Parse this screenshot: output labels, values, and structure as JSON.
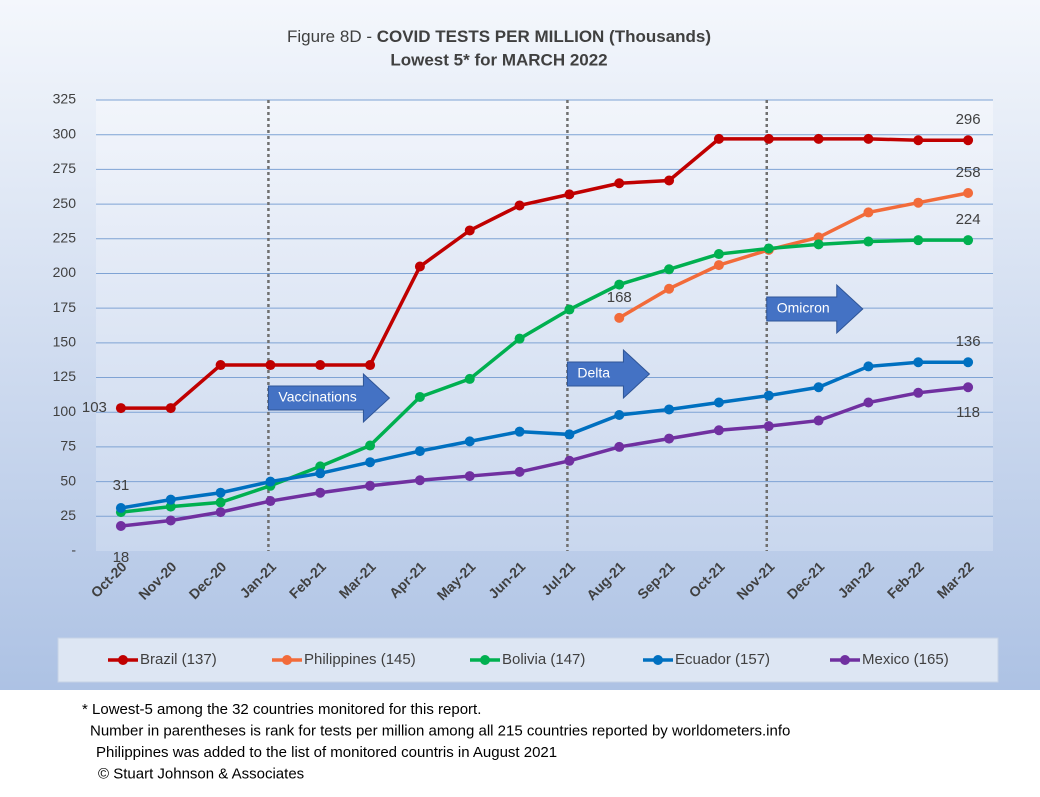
{
  "chart_data": {
    "type": "line",
    "title": {
      "label": "Figure 8D - ",
      "text": "COVID TESTS PER MILLION (Thousands)"
    },
    "subtitle": "Lowest 5* for MARCH 2022",
    "categories": [
      "Oct-20",
      "Nov-20",
      "Dec-20",
      "Jan-21",
      "Feb-21",
      "Mar-21",
      "Apr-21",
      "May-21",
      "Jun-21",
      "Jul-21",
      "Aug-21",
      "Sep-21",
      "Oct-21",
      "Nov-21",
      "Dec-21",
      "Jan-22",
      "Feb-22",
      "Mar-22"
    ],
    "series": [
      {
        "name": "Brazil (137)",
        "color": "#c00000",
        "values": [
          103,
          103,
          134,
          134,
          134,
          134,
          205,
          231,
          249,
          257,
          265,
          267,
          297,
          297,
          297,
          297,
          296,
          296
        ],
        "value_labels": [
          "103",
          null,
          null,
          null,
          null,
          null,
          null,
          null,
          null,
          null,
          null,
          null,
          null,
          null,
          null,
          null,
          null,
          "296"
        ]
      },
      {
        "name": "Philippines (145)",
        "color": "#f26b3a",
        "values": [
          null,
          null,
          null,
          null,
          null,
          null,
          null,
          null,
          null,
          null,
          168,
          189,
          206,
          217,
          226,
          244,
          251,
          258
        ],
        "value_labels": [
          null,
          null,
          null,
          null,
          null,
          null,
          null,
          null,
          null,
          null,
          "168",
          null,
          null,
          null,
          null,
          null,
          null,
          "258"
        ]
      },
      {
        "name": "Bolivia (147)",
        "color": "#00b050",
        "values": [
          28,
          32,
          35,
          47,
          61,
          76,
          111,
          124,
          153,
          174,
          192,
          203,
          214,
          218,
          221,
          223,
          224,
          224
        ],
        "value_labels": [
          null,
          null,
          null,
          null,
          null,
          null,
          null,
          null,
          null,
          null,
          null,
          null,
          null,
          null,
          null,
          null,
          null,
          "224"
        ]
      },
      {
        "name": "Ecuador (157)",
        "color": "#0070c0",
        "values": [
          31,
          37,
          42,
          50,
          56,
          64,
          72,
          79,
          86,
          84,
          98,
          102,
          107,
          112,
          118,
          133,
          136,
          136
        ],
        "value_labels": [
          "31",
          null,
          null,
          null,
          null,
          null,
          null,
          null,
          null,
          null,
          null,
          null,
          null,
          null,
          null,
          null,
          null,
          "136"
        ]
      },
      {
        "name": "Mexico (165)",
        "color": "#7030a0",
        "values": [
          18,
          22,
          28,
          36,
          42,
          47,
          51,
          54,
          57,
          65,
          75,
          81,
          87,
          90,
          94,
          107,
          114,
          118
        ],
        "value_labels": [
          "18",
          null,
          null,
          null,
          null,
          null,
          null,
          null,
          null,
          null,
          null,
          null,
          null,
          null,
          null,
          null,
          null,
          "118"
        ]
      }
    ],
    "ylim": [
      0,
      325
    ],
    "yticks": [
      {
        "value": 0,
        "label": "-"
      },
      25,
      50,
      75,
      100,
      125,
      150,
      175,
      200,
      225,
      250,
      275,
      300,
      325
    ],
    "grid": true,
    "legend": "bottom",
    "annotations": [
      {
        "text": "Vaccinations",
        "category": "Jan-21"
      },
      {
        "text": "Delta",
        "category": "Jul-21"
      },
      {
        "text": "Omicron",
        "category": "Nov-21"
      }
    ]
  },
  "footnotes": [
    "* Lowest-5 among the 32 countries monitored for this report.",
    "Number in parentheses is rank for tests per million among all 215 countries reported by worldometers.info",
    "Philippines  was added to the list of monitored countris in August 2021",
    "© Stuart Johnson & Associates"
  ]
}
